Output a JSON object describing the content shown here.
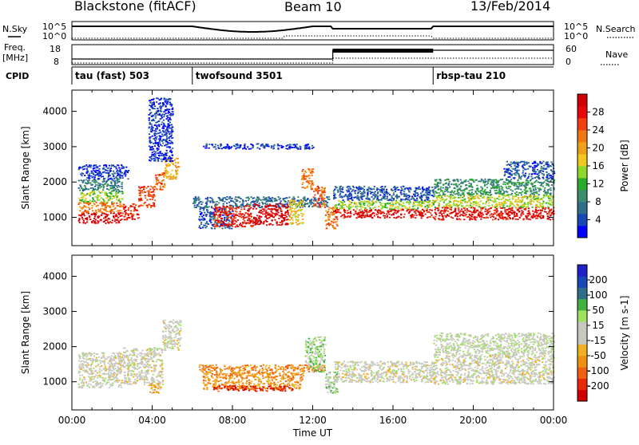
{
  "header": {
    "station": "Blackstone (fitACF)",
    "beam": "Beam 10",
    "date": "13/Feb/2014"
  },
  "top_panels": {
    "nsky_label": "N.Sky",
    "nsky_ticks": [
      "10^5",
      "10^0"
    ],
    "nsearch_label": "N.Search",
    "nsearch_ticks": [
      "10^5",
      "10^0"
    ],
    "freq_label": "Freq.",
    "freq_unit": "[MHz]",
    "freq_ticks": [
      "18",
      "8"
    ],
    "nave_label": "Nave",
    "nave_ticks": [
      "60",
      "0"
    ],
    "cpid_label": "CPID",
    "cpid_segments": [
      {
        "label": "tau (fast) 503",
        "start": 0
      },
      {
        "label": "twofsound 3501",
        "start": 6
      },
      {
        "label": "rbsp-tau 210",
        "start": 18
      }
    ]
  },
  "chart_data": [
    {
      "type": "heatmap",
      "name": "power",
      "xlabel": "",
      "ylabel": "Slant Range [km]",
      "xlim": [
        0,
        24
      ],
      "ylim": [
        200,
        4600
      ],
      "yticks": [
        "1000",
        "2000",
        "3000",
        "4000"
      ],
      "colorbar": {
        "label": "Power [dB]",
        "ticks": [
          "28",
          "24",
          "20",
          "16",
          "12",
          "8",
          "4"
        ],
        "colors": [
          "#0000ff",
          "#1848b8",
          "#2e6e88",
          "#3c8c6e",
          "#2aaa2a",
          "#8ed82a",
          "#f0c820",
          "#f0a018",
          "#f07810",
          "#f04010",
          "#e80808",
          "#d00000"
        ]
      },
      "regions": [
        {
          "x0": 0.3,
          "x1": 2.5,
          "y0": 850,
          "y1": 1150,
          "level": 0.95
        },
        {
          "x0": 0.3,
          "x1": 2.5,
          "y0": 1150,
          "y1": 1450,
          "level": 0.7
        },
        {
          "x0": 0.3,
          "x1": 2.5,
          "y0": 1450,
          "y1": 1750,
          "level": 0.45
        },
        {
          "x0": 0.3,
          "x1": 2.5,
          "y0": 1750,
          "y1": 2100,
          "level": 0.25
        },
        {
          "x0": 0.3,
          "x1": 2.8,
          "y0": 2100,
          "y1": 2500,
          "level": 0.1
        },
        {
          "x0": 2.5,
          "x1": 3.3,
          "y0": 950,
          "y1": 1400,
          "level": 0.85
        },
        {
          "x0": 3.3,
          "x1": 4.1,
          "y0": 1300,
          "y1": 1900,
          "level": 0.8
        },
        {
          "x0": 4.1,
          "x1": 4.6,
          "y0": 1800,
          "y1": 2300,
          "level": 0.75
        },
        {
          "x0": 4.6,
          "x1": 5.3,
          "y0": 2100,
          "y1": 2700,
          "level": 0.6
        },
        {
          "x0": 3.8,
          "x1": 5.0,
          "y0": 2600,
          "y1": 4400,
          "level": 0.1
        },
        {
          "x0": 6.0,
          "x1": 12.8,
          "y0": 1300,
          "y1": 1600,
          "level": 0.2
        },
        {
          "x0": 6.3,
          "x1": 8.0,
          "y0": 700,
          "y1": 1300,
          "level": 0.15
        },
        {
          "x0": 7.0,
          "x1": 9.0,
          "y0": 750,
          "y1": 1350,
          "level": 0.85
        },
        {
          "x0": 9.0,
          "x1": 10.8,
          "y0": 800,
          "y1": 1400,
          "level": 0.95
        },
        {
          "x0": 10.8,
          "x1": 11.5,
          "y0": 800,
          "y1": 1500,
          "level": 0.55
        },
        {
          "x0": 11.4,
          "x1": 12.0,
          "y0": 1800,
          "y1": 2400,
          "level": 0.7
        },
        {
          "x0": 12.0,
          "x1": 12.6,
          "y0": 1300,
          "y1": 1900,
          "level": 0.75
        },
        {
          "x0": 12.6,
          "x1": 13.2,
          "y0": 700,
          "y1": 1300,
          "level": 0.7
        },
        {
          "x0": 13.0,
          "x1": 18.0,
          "y0": 1000,
          "y1": 1250,
          "level": 0.9
        },
        {
          "x0": 13.0,
          "x1": 18.0,
          "y0": 1250,
          "y1": 1500,
          "level": 0.45
        },
        {
          "x0": 13.0,
          "x1": 18.0,
          "y0": 1500,
          "y1": 1900,
          "level": 0.15
        },
        {
          "x0": 18.0,
          "x1": 24.0,
          "y0": 950,
          "y1": 1300,
          "level": 0.9
        },
        {
          "x0": 18.0,
          "x1": 24.0,
          "y0": 1300,
          "y1": 1650,
          "level": 0.5
        },
        {
          "x0": 18.0,
          "x1": 24.0,
          "y0": 1650,
          "y1": 2100,
          "level": 0.3
        },
        {
          "x0": 21.5,
          "x1": 24.0,
          "y0": 2100,
          "y1": 2600,
          "level": 0.15
        },
        {
          "x0": 6.5,
          "x1": 12.0,
          "y0": 2950,
          "y1": 3100,
          "level": 0.1
        }
      ]
    },
    {
      "type": "heatmap",
      "name": "velocity",
      "xlabel": "Time UT",
      "ylabel": "Slant Range [km]",
      "xlim": [
        0,
        24
      ],
      "ylim": [
        200,
        4600
      ],
      "xticks": [
        "00:00",
        "04:00",
        "08:00",
        "12:00",
        "16:00",
        "20:00",
        "00:00"
      ],
      "yticks": [
        "1000",
        "2000",
        "3000",
        "4000"
      ],
      "colorbar": {
        "label": "Velocity [m s-1]",
        "ticks": [
          "200",
          "100",
          "50",
          "15",
          "-15",
          "-50",
          "-100",
          "-200"
        ],
        "colors": [
          "#d00000",
          "#e82808",
          "#f06010",
          "#f09010",
          "#f0b020",
          "#c8c8c0",
          "#c8c8c0",
          "#a0e060",
          "#40b040",
          "#2e6e88",
          "#1848b8",
          "#2020c8"
        ]
      },
      "regions": [
        {
          "x0": 0.3,
          "x1": 2.5,
          "y0": 850,
          "y1": 1850,
          "level": 0.5
        },
        {
          "x0": 2.5,
          "x1": 4.5,
          "y0": 950,
          "y1": 2000,
          "level": 0.5
        },
        {
          "x0": 4.5,
          "x1": 5.4,
          "y0": 1900,
          "y1": 2800,
          "level": 0.5
        },
        {
          "x0": 3.8,
          "x1": 4.4,
          "y0": 700,
          "y1": 1000,
          "level": 0.35
        },
        {
          "x0": 6.3,
          "x1": 12.6,
          "y0": 1300,
          "y1": 1500,
          "level": 0.28
        },
        {
          "x0": 6.5,
          "x1": 11.5,
          "y0": 800,
          "y1": 1300,
          "level": 0.3
        },
        {
          "x0": 7.0,
          "x1": 11.0,
          "y0": 750,
          "y1": 900,
          "level": 0.1
        },
        {
          "x0": 11.6,
          "x1": 12.6,
          "y0": 1300,
          "y1": 2300,
          "level": 0.62
        },
        {
          "x0": 12.6,
          "x1": 13.2,
          "y0": 700,
          "y1": 1300,
          "level": 0.6
        },
        {
          "x0": 13.0,
          "x1": 18.0,
          "y0": 1000,
          "y1": 1600,
          "level": 0.5
        },
        {
          "x0": 18.0,
          "x1": 24.0,
          "y0": 950,
          "y1": 1800,
          "level": 0.5
        },
        {
          "x0": 18.0,
          "x1": 24.0,
          "y0": 1800,
          "y1": 2400,
          "level": 0.55
        }
      ]
    }
  ]
}
